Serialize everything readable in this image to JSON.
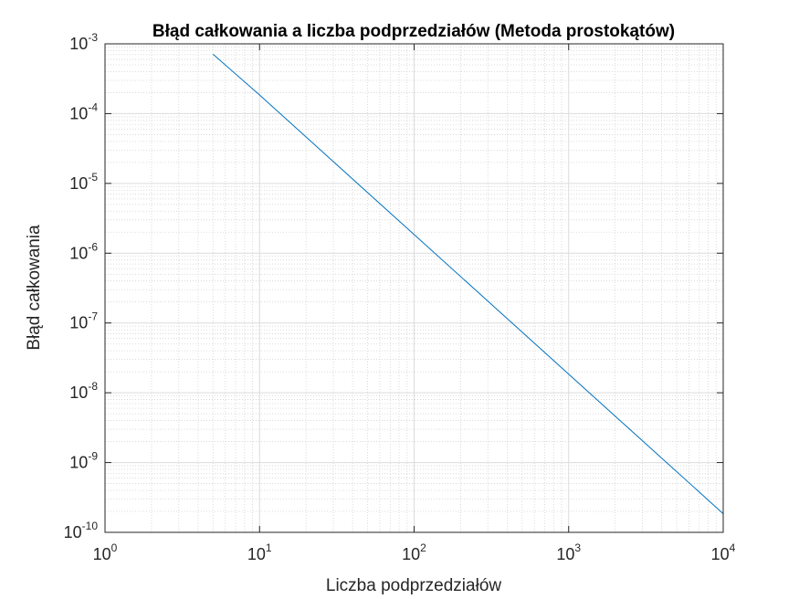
{
  "chart_data": {
    "type": "line",
    "title": "Błąd całkowania a liczba podprzedziałów (Metoda prostokątów)",
    "xlabel": "Liczba podprzedziałów",
    "ylabel": "Błąd całkowania",
    "xscale": "log",
    "yscale": "log",
    "xlim": [
      1,
      10000
    ],
    "ylim": [
      1e-10,
      0.001
    ],
    "grid": true,
    "minor_grid": true,
    "x_ticks": [
      {
        "base": "10",
        "exp": "0",
        "value": 1
      },
      {
        "base": "10",
        "exp": "1",
        "value": 10
      },
      {
        "base": "10",
        "exp": "2",
        "value": 100
      },
      {
        "base": "10",
        "exp": "3",
        "value": 1000
      },
      {
        "base": "10",
        "exp": "4",
        "value": 10000
      }
    ],
    "y_ticks": [
      {
        "base": "10",
        "exp": "-10",
        "value": 1e-10
      },
      {
        "base": "10",
        "exp": "-9",
        "value": 1e-09
      },
      {
        "base": "10",
        "exp": "-8",
        "value": 1e-08
      },
      {
        "base": "10",
        "exp": "-7",
        "value": 1e-07
      },
      {
        "base": "10",
        "exp": "-6",
        "value": 1e-06
      },
      {
        "base": "10",
        "exp": "-5",
        "value": 1e-05
      },
      {
        "base": "10",
        "exp": "-4",
        "value": 0.0001
      },
      {
        "base": "10",
        "exp": "-3",
        "value": 0.001
      }
    ],
    "series": [
      {
        "color": "#0072bd",
        "x": [
          5,
          10,
          100,
          1000,
          10000
        ],
        "y": [
          0.00071,
          0.000185,
          1.85e-06,
          1.85e-08,
          1.85e-10
        ]
      }
    ]
  }
}
